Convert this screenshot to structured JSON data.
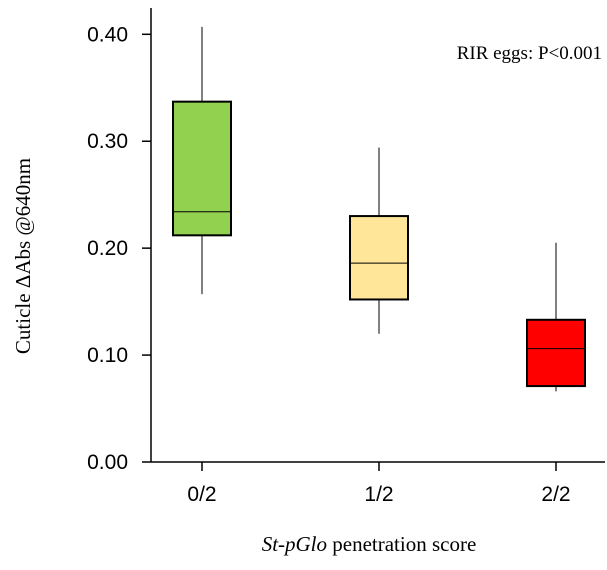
{
  "chart_data": {
    "type": "box",
    "categories": [
      "0/2",
      "1/2",
      "2/2"
    ],
    "boxes": [
      {
        "category": "0/2",
        "min": 0.157,
        "q1": 0.212,
        "median": 0.234,
        "q3": 0.337,
        "max": 0.407,
        "color": "#92d050"
      },
      {
        "category": "1/2",
        "min": 0.12,
        "q1": 0.152,
        "median": 0.186,
        "q3": 0.23,
        "max": 0.294,
        "color": "#ffe699"
      },
      {
        "category": "2/2",
        "min": 0.066,
        "q1": 0.071,
        "median": 0.106,
        "q3": 0.133,
        "max": 0.205,
        "color": "#ff0000"
      }
    ],
    "ylim": [
      0.0,
      0.42
    ],
    "yticks": [
      "0.00",
      "0.10",
      "0.20",
      "0.30",
      "0.40"
    ],
    "ylabel": "Cuticle  ΔAbs @640nm",
    "xlabel_italic": "St-pGlo",
    "xlabel_rest": " penetration score",
    "annotation": "RIR eggs: P<0.001",
    "grid": false
  }
}
